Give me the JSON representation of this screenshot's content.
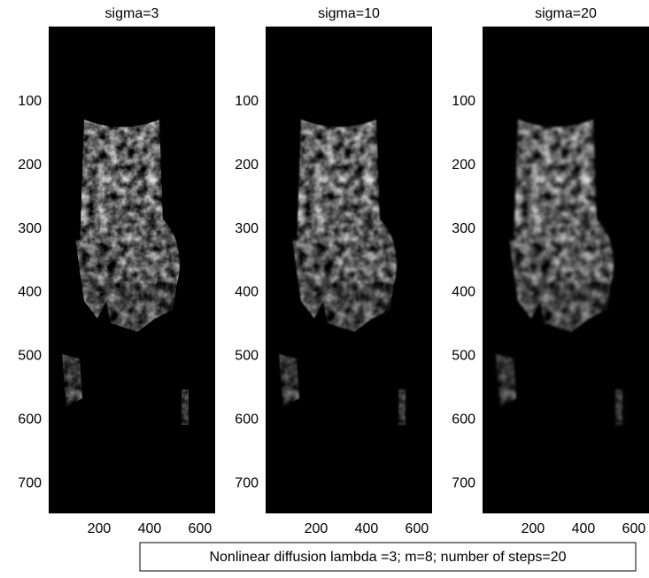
{
  "chart_data": [
    {
      "type": "image",
      "title": "sigma=3",
      "xlim": [
        0,
        660
      ],
      "ylim": [
        -18,
        747
      ],
      "xticks": [
        200,
        400,
        600
      ],
      "yticks": [
        100,
        200,
        300,
        400,
        500,
        600,
        700
      ]
    },
    {
      "type": "image",
      "title": "sigma=10",
      "xlim": [
        0,
        660
      ],
      "ylim": [
        -18,
        747
      ],
      "xticks": [
        200,
        400,
        600
      ],
      "yticks": [
        100,
        200,
        300,
        400,
        500,
        600,
        700
      ]
    },
    {
      "type": "image",
      "title": "sigma=20",
      "xlim": [
        0,
        660
      ],
      "ylim": [
        -18,
        747
      ],
      "xticks": [
        200,
        400,
        600
      ],
      "yticks": [
        100,
        200,
        300,
        400,
        500,
        600,
        700
      ]
    }
  ],
  "annotation": "Nonlinear diffusion lambda =3; m=8; number of steps=20"
}
